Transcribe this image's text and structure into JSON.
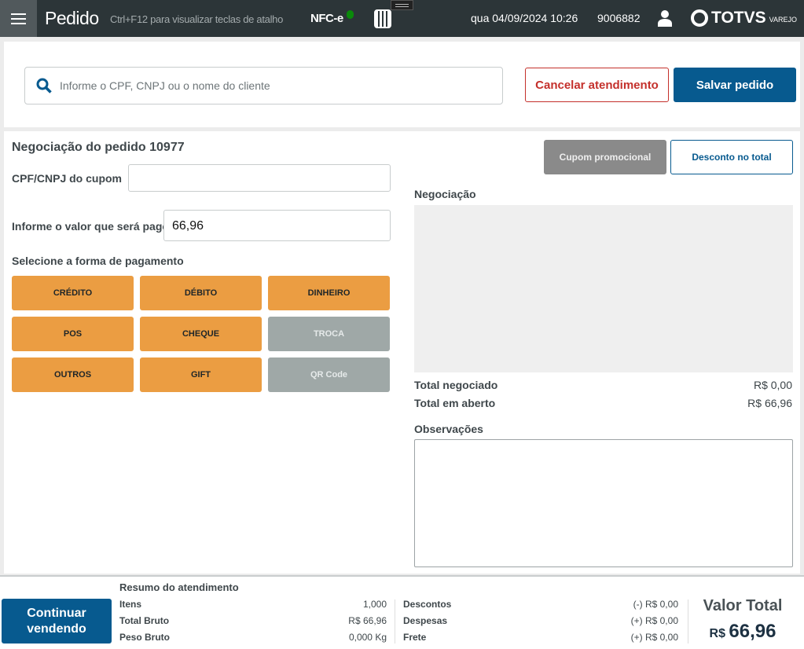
{
  "header": {
    "title": "Pedido",
    "hint": "Ctrl+F12 para visualizar teclas de atalho",
    "nfce": "NFC-e",
    "datetime": "qua 04/09/2024 10:26",
    "code": "9006882",
    "logo": "TOTVS",
    "logo_sub": "VAREJO",
    "nfce_status_color": "#0a8a0a"
  },
  "top": {
    "search_placeholder": "Informe o CPF, CNPJ ou o nome do cliente",
    "cancel": "Cancelar atendimento",
    "save": "Salvar pedido"
  },
  "neg": {
    "title": "Negociação do pedido 10977",
    "cpf_label": "CPF/CNPJ do cupom",
    "cpf_value": "",
    "valor_label": "Informe o valor que será pago",
    "valor_value": "66,96",
    "forma_label": "Selecione a forma de pagamento",
    "payments": [
      {
        "label": "CRÉDITO",
        "enabled": true
      },
      {
        "label": "DÉBITO",
        "enabled": true
      },
      {
        "label": "DINHEIRO",
        "enabled": true
      },
      {
        "label": "POS",
        "enabled": true
      },
      {
        "label": "CHEQUE",
        "enabled": true
      },
      {
        "label": "TROCA",
        "enabled": false
      },
      {
        "label": "OUTROS",
        "enabled": true
      },
      {
        "label": "GIFT",
        "enabled": true
      },
      {
        "label": "QR Code",
        "enabled": false
      }
    ]
  },
  "right": {
    "cupom": "Cupom promocional",
    "desconto": "Desconto no total",
    "negociacao": "Negociação",
    "total_neg_label": "Total negociado",
    "total_neg": "R$ 0,00",
    "total_aberto_label": "Total em aberto",
    "total_aberto": "R$ 66,96",
    "obs_label": "Observações",
    "obs_value": ""
  },
  "footer": {
    "continue": "Continuar vendendo",
    "resumo": "Resumo do atendimento",
    "left": [
      {
        "label": "Itens",
        "value": "1,000"
      },
      {
        "label": "Total Bruto",
        "value": "R$ 66,96"
      },
      {
        "label": "Peso Bruto",
        "value": "0,000 Kg"
      }
    ],
    "mid": [
      {
        "label": "Descontos",
        "value": "(-) R$ 0,00"
      },
      {
        "label": "Despesas",
        "value": "(+) R$ 0,00"
      },
      {
        "label": "Frete",
        "value": "(+) R$ 0,00"
      }
    ],
    "valor_total_label": "Valor Total",
    "currency": "R$",
    "valor_total": "66,96"
  }
}
